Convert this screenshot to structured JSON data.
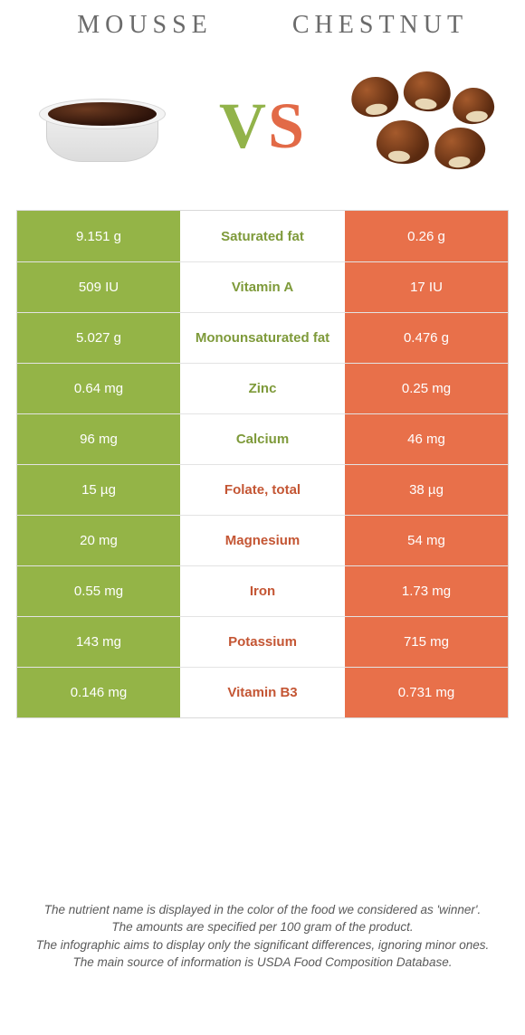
{
  "colors": {
    "left": "#94b447",
    "right": "#e8704a",
    "mid_green": "#7e9a3a",
    "mid_orange": "#c45634"
  },
  "header": {
    "left_title": "MOUSSE",
    "right_title": "CHESTNUT"
  },
  "vs": {
    "v": "V",
    "s": "S"
  },
  "rows": [
    {
      "left": "9.151 g",
      "label": "Saturated fat",
      "right": "0.26 g",
      "winner": "left"
    },
    {
      "left": "509 IU",
      "label": "Vitamin A",
      "right": "17 IU",
      "winner": "left"
    },
    {
      "left": "5.027 g",
      "label": "Monounsaturated fat",
      "right": "0.476 g",
      "winner": "left"
    },
    {
      "left": "0.64 mg",
      "label": "Zinc",
      "right": "0.25 mg",
      "winner": "left"
    },
    {
      "left": "96 mg",
      "label": "Calcium",
      "right": "46 mg",
      "winner": "left"
    },
    {
      "left": "15 µg",
      "label": "Folate, total",
      "right": "38 µg",
      "winner": "right"
    },
    {
      "left": "20 mg",
      "label": "Magnesium",
      "right": "54 mg",
      "winner": "right"
    },
    {
      "left": "0.55 mg",
      "label": "Iron",
      "right": "1.73 mg",
      "winner": "right"
    },
    {
      "left": "143 mg",
      "label": "Potassium",
      "right": "715 mg",
      "winner": "right"
    },
    {
      "left": "0.146 mg",
      "label": "Vitamin B3",
      "right": "0.731 mg",
      "winner": "right"
    }
  ],
  "footer": {
    "l1": "The nutrient name is displayed in the color of the food we considered as 'winner'.",
    "l2": "The amounts are specified per 100 gram of the product.",
    "l3": "The infographic aims to display only the significant differences, ignoring minor ones.",
    "l4": "The main source of information is USDA Food Composition Database."
  }
}
